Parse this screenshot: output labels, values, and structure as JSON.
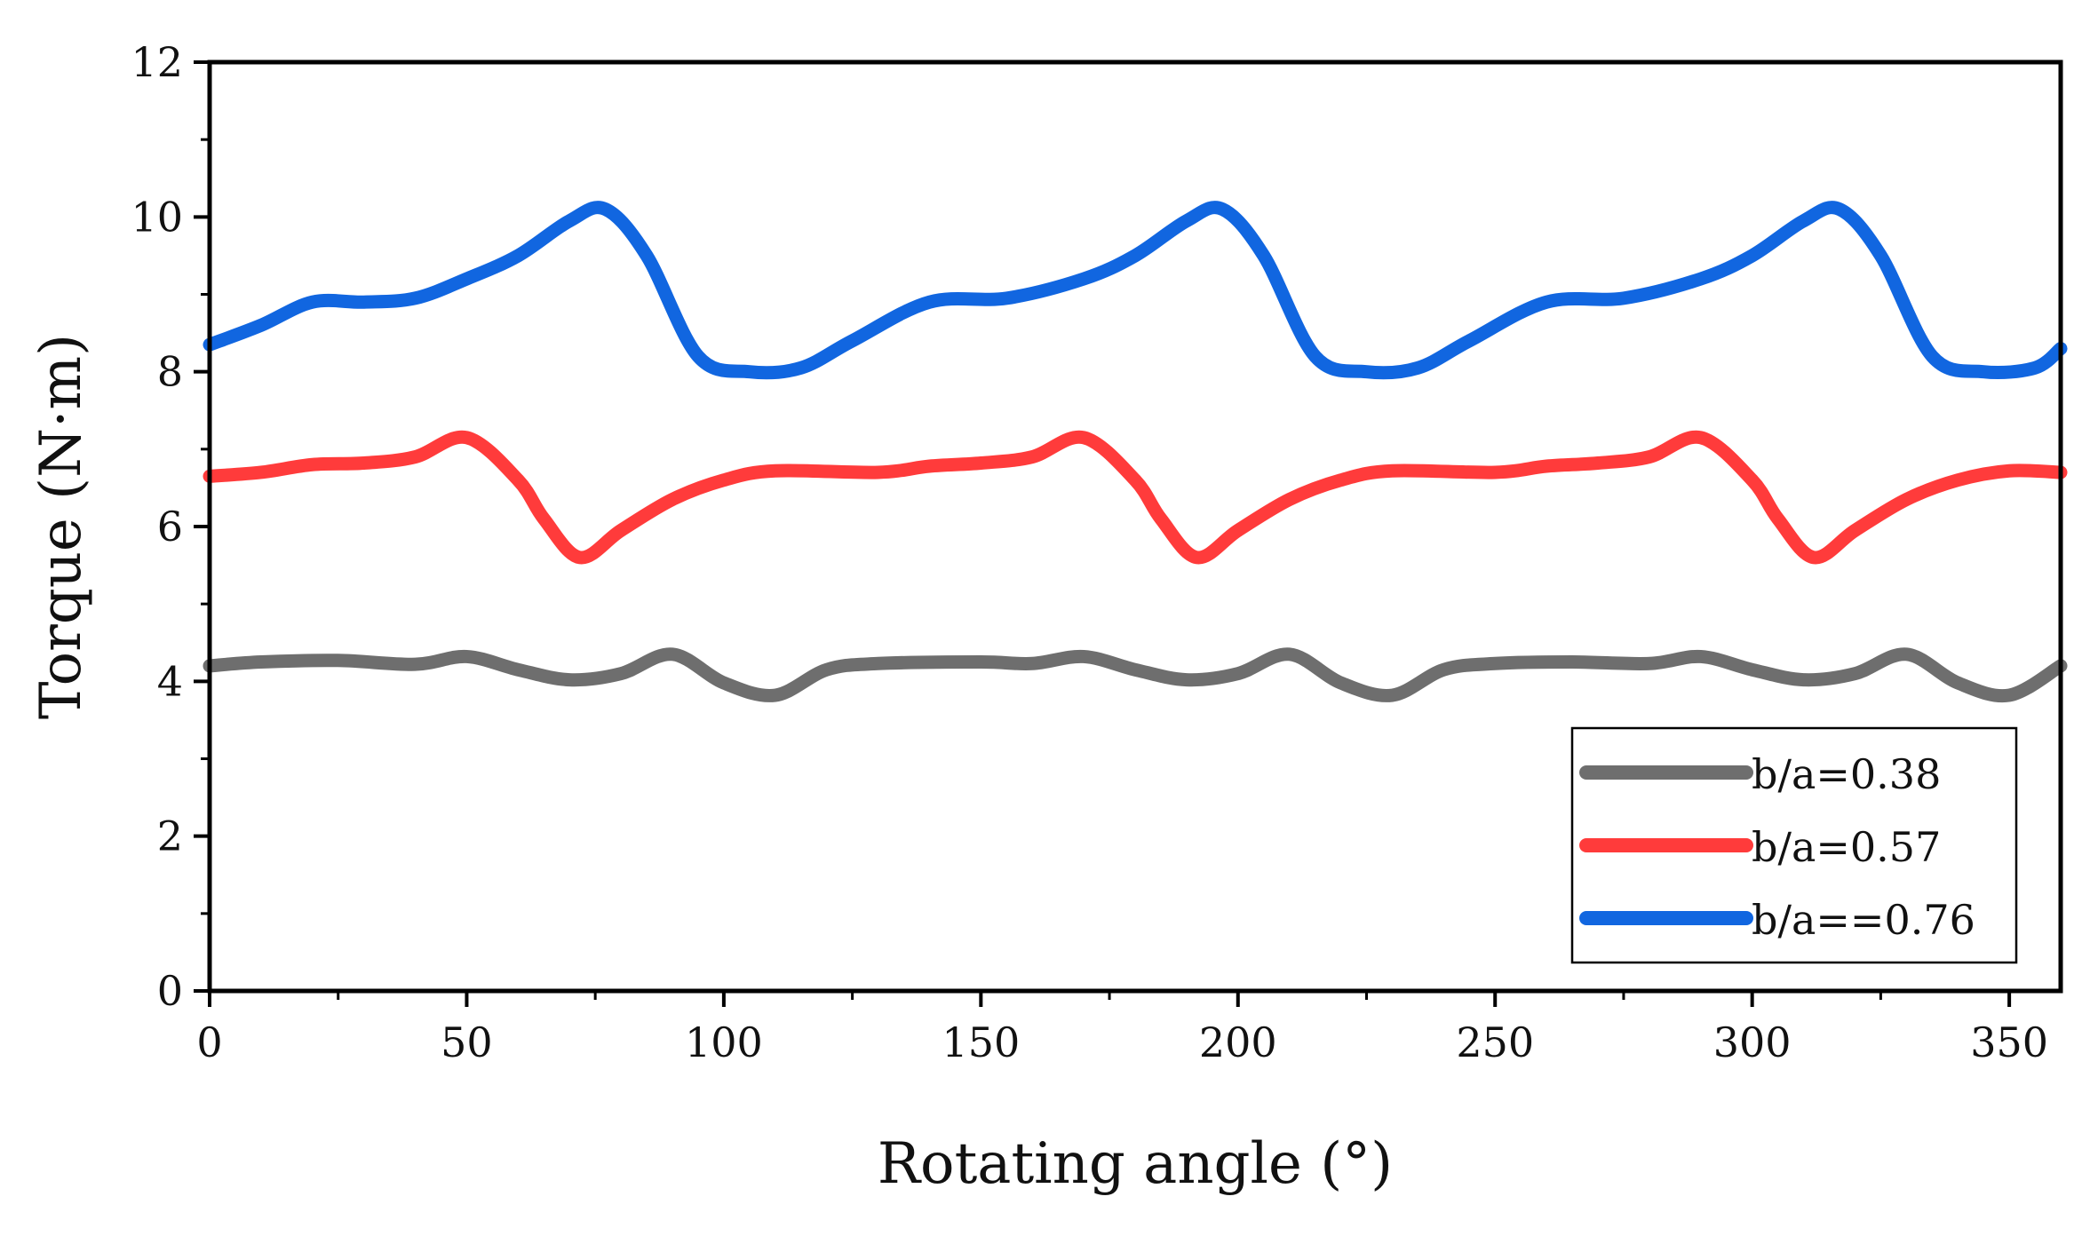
{
  "chart_data": {
    "type": "line",
    "title": "",
    "xlabel": "Rotating angle (°)",
    "ylabel": "Torque (N·m)",
    "xlim": [
      0,
      360
    ],
    "ylim": [
      0,
      12
    ],
    "xticks": [
      0,
      50,
      100,
      150,
      200,
      250,
      300,
      350
    ],
    "yticks": [
      0,
      2,
      4,
      6,
      8,
      10,
      12
    ],
    "grid": false,
    "legend_position": "bottom-right",
    "series": [
      {
        "name": "b/a=0.38",
        "color": "#6e6e6e",
        "x": [
          0,
          10,
          25,
          40,
          50,
          60,
          70,
          80,
          90,
          100,
          110,
          120,
          130,
          150,
          160,
          170,
          180,
          190,
          200,
          210,
          220,
          230,
          240,
          250,
          265,
          280,
          290,
          300,
          310,
          320,
          330,
          340,
          350,
          360
        ],
        "values": [
          4.2,
          4.25,
          4.27,
          4.22,
          4.32,
          4.15,
          4.02,
          4.1,
          4.35,
          3.98,
          3.82,
          4.15,
          4.23,
          4.25,
          4.23,
          4.32,
          4.15,
          4.02,
          4.1,
          4.35,
          3.98,
          3.82,
          4.15,
          4.23,
          4.25,
          4.23,
          4.32,
          4.15,
          4.02,
          4.1,
          4.35,
          3.98,
          3.82,
          4.2
        ]
      },
      {
        "name": "b/a=0.57",
        "color": "#ff3b3b",
        "x": [
          0,
          10,
          20,
          30,
          40,
          50,
          60,
          65,
          72,
          80,
          90,
          100,
          110,
          130,
          140,
          150,
          160,
          170,
          180,
          185,
          192,
          200,
          210,
          220,
          230,
          250,
          260,
          270,
          280,
          290,
          300,
          305,
          312,
          320,
          330,
          340,
          350,
          360
        ],
        "values": [
          6.65,
          6.7,
          6.8,
          6.82,
          6.9,
          7.15,
          6.6,
          6.1,
          5.6,
          5.95,
          6.35,
          6.6,
          6.72,
          6.7,
          6.78,
          6.82,
          6.9,
          7.15,
          6.6,
          6.1,
          5.6,
          5.95,
          6.35,
          6.6,
          6.72,
          6.7,
          6.78,
          6.82,
          6.9,
          7.15,
          6.6,
          6.1,
          5.6,
          5.95,
          6.35,
          6.6,
          6.72,
          6.7
        ]
      },
      {
        "name": "b/a==0.76",
        "color": "#1166e0",
        "x": [
          0,
          10,
          20,
          30,
          40,
          50,
          60,
          70,
          77,
          85,
          95,
          105,
          115,
          125,
          140,
          155,
          170,
          180,
          190,
          197,
          205,
          215,
          225,
          235,
          245,
          260,
          275,
          290,
          300,
          310,
          317,
          325,
          335,
          345,
          355,
          360
        ],
        "values": [
          8.35,
          8.6,
          8.9,
          8.9,
          8.95,
          9.2,
          9.5,
          9.95,
          10.1,
          9.5,
          8.2,
          8.0,
          8.05,
          8.4,
          8.9,
          8.95,
          9.2,
          9.5,
          9.95,
          10.1,
          9.5,
          8.2,
          8.0,
          8.05,
          8.4,
          8.9,
          8.95,
          9.2,
          9.5,
          9.95,
          10.1,
          9.5,
          8.2,
          8.0,
          8.05,
          8.3
        ]
      }
    ]
  }
}
